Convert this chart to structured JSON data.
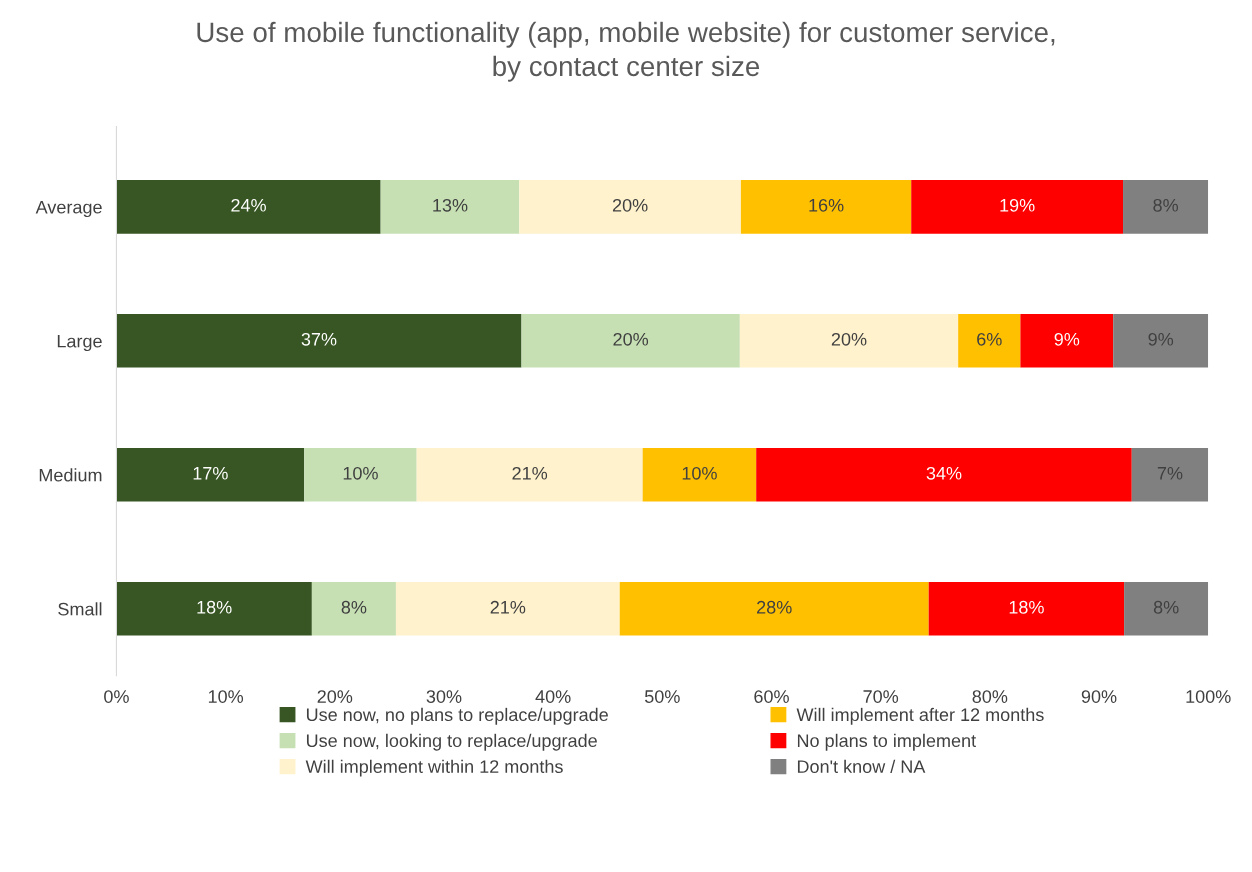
{
  "chart_data": {
    "type": "bar",
    "orientation": "horizontal",
    "stacked": true,
    "title": "Use of mobile functionality (app, mobile website) for customer service,\nby contact center size",
    "categories": [
      "Average",
      "Large",
      "Medium",
      "Small"
    ],
    "series": [
      {
        "name": "Use now, no plans to replace/upgrade",
        "color": "#375623",
        "values": [
          24.2,
          37.1,
          17.2,
          17.9
        ],
        "value_labels": [
          "24%",
          "37%",
          "17%",
          "18%"
        ]
      },
      {
        "name": "Use now, looking to replace/upgrade",
        "color": "#c6e0b4",
        "values": [
          12.7,
          20.0,
          10.3,
          7.7
        ],
        "value_labels": [
          "13%",
          "20%",
          "10%",
          "8%"
        ]
      },
      {
        "name": "Will implement within 12 months",
        "color": "#fff2cc",
        "values": [
          20.3,
          20.0,
          20.7,
          20.5
        ],
        "value_labels": [
          "20%",
          "20%",
          "21%",
          "21%"
        ]
      },
      {
        "name": "Will implement after 12 months",
        "color": "#ffc000",
        "values": [
          15.6,
          5.7,
          10.4,
          28.3
        ],
        "value_labels": [
          "16%",
          "6%",
          "10%",
          "28%"
        ]
      },
      {
        "name": "No plans to implement",
        "color": "#ff0000",
        "values": [
          19.4,
          8.5,
          34.4,
          17.9
        ],
        "value_labels": [
          "19%",
          "9%",
          "34%",
          "18%"
        ]
      },
      {
        "name": "Don't know / NA",
        "color": "#808080",
        "values": [
          7.8,
          8.7,
          7.0,
          7.7
        ],
        "value_labels": [
          "8%",
          "9%",
          "7%",
          "8%"
        ]
      }
    ],
    "xlim": [
      0,
      100
    ],
    "xticks": [
      {
        "value": 0,
        "label": "0%"
      },
      {
        "value": 10,
        "label": "10%"
      },
      {
        "value": 20,
        "label": "20%"
      },
      {
        "value": 30,
        "label": "30%"
      },
      {
        "value": 40,
        "label": "40%"
      },
      {
        "value": 50,
        "label": "50%"
      },
      {
        "value": 60,
        "label": "60%"
      },
      {
        "value": 70,
        "label": "70%"
      },
      {
        "value": 80,
        "label": "80%"
      },
      {
        "value": 90,
        "label": "90%"
      },
      {
        "value": 100,
        "label": "100%"
      }
    ],
    "grid": false,
    "legend": "bottom"
  }
}
